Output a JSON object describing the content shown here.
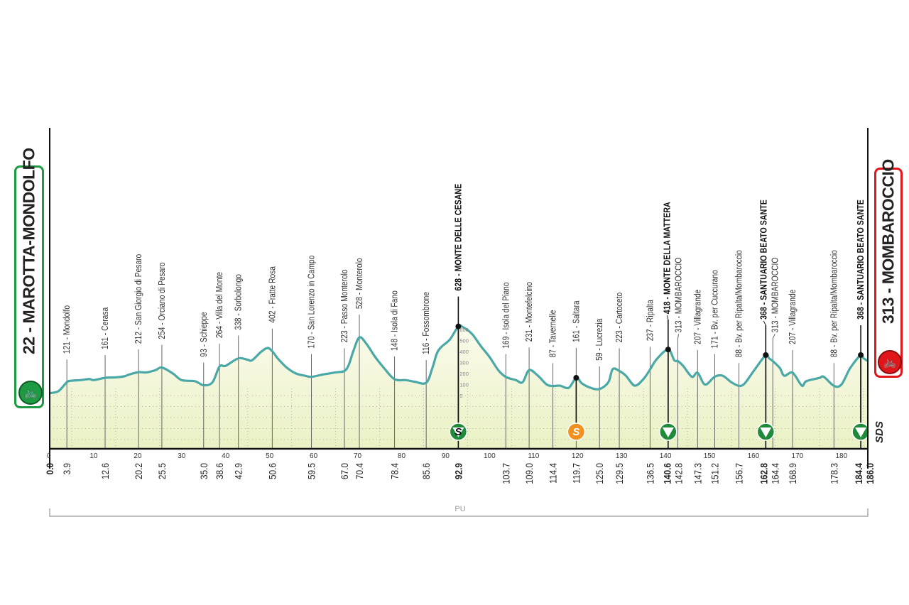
{
  "start": {
    "label": "22 - MAROTTA-MONDOLFO",
    "icon": "cyclist-icon",
    "color": "#1e9a45"
  },
  "finish": {
    "label": "313 - MOMBAROCCIO",
    "icon": "cyclist-climb-icon",
    "color": "#e0161b"
  },
  "pu_label": "PU",
  "sds_logo": "SDS",
  "colors": {
    "profile_line": "#4aa8a6",
    "fill_top": "#fbfbec",
    "fill_bottom": "#eaf1c4",
    "gpm_marker": "#1e8a3a",
    "sprint_marker": "#f0901e"
  },
  "chart_data": {
    "type": "area",
    "xlabel": "",
    "ylabel": "",
    "xlim": [
      0,
      186
    ],
    "x_ticks": [
      0,
      10,
      20,
      30,
      40,
      50,
      60,
      70,
      80,
      90,
      100,
      110,
      120,
      130,
      140,
      150,
      160,
      170,
      180
    ],
    "elevation_scale_ticks": [
      0,
      100,
      200,
      300,
      400,
      500,
      600
    ],
    "grid": true,
    "profile": {
      "km": [
        0,
        2,
        3.9,
        5,
        7,
        9,
        10,
        12.6,
        15,
        17,
        18,
        20.2,
        22,
        24,
        25.5,
        28,
        30,
        33,
        35,
        37,
        38.6,
        40,
        42.9,
        45,
        46,
        48,
        49.5,
        50.6,
        52,
        54,
        56,
        58,
        59.5,
        62,
        65,
        67,
        68,
        69,
        70.4,
        72,
        74,
        76,
        78.4,
        81,
        83,
        85.6,
        87,
        88,
        89,
        91,
        92.9,
        94,
        96,
        98,
        100,
        102,
        103.7,
        106,
        107.5,
        109,
        111,
        113,
        114.4,
        116,
        118,
        119.7,
        121,
        123,
        125,
        127,
        128,
        129.5,
        131,
        133,
        135,
        136.5,
        138,
        140.6,
        142,
        142.8,
        144,
        146,
        147.3,
        149,
        151.2,
        153,
        155,
        156.7,
        158,
        160,
        162.8,
        163.5,
        164.4,
        166,
        167,
        168.9,
        171,
        172,
        175,
        176,
        178.3,
        180,
        182,
        184.4,
        185,
        186
      ],
      "elevation": [
        22,
        40,
        121,
        135,
        140,
        150,
        140,
        161,
        165,
        175,
        190,
        212,
        210,
        230,
        254,
        200,
        140,
        130,
        93,
        120,
        264,
        270,
        338,
        325,
        320,
        395,
        432,
        402,
        330,
        250,
        200,
        180,
        170,
        190,
        210,
        223,
        280,
        400,
        528,
        470,
        350,
        250,
        148,
        140,
        125,
        116,
        250,
        380,
        440,
        510,
        628,
        620,
        560,
        450,
        350,
        230,
        169,
        140,
        120,
        231,
        180,
        100,
        87,
        90,
        70,
        161,
        110,
        70,
        59,
        120,
        240,
        223,
        180,
        90,
        150,
        237,
        330,
        418,
        320,
        313,
        270,
        170,
        207,
        100,
        171,
        180,
        120,
        88,
        110,
        220,
        368,
        340,
        313,
        250,
        180,
        207,
        90,
        130,
        160,
        170,
        88,
        100,
        250,
        368,
        340,
        313
      ]
    },
    "points": [
      {
        "km": "0.0",
        "elevation": 22,
        "name": "",
        "bold": true
      },
      {
        "km": "3.9",
        "elevation": 121,
        "name": "121 - Mondolfo"
      },
      {
        "km": "12.6",
        "elevation": 161,
        "name": "161 - Cerasa"
      },
      {
        "km": "20.2",
        "elevation": 212,
        "name": "212 - San Giorgio di Pesaro"
      },
      {
        "km": "25.5",
        "elevation": 254,
        "name": "254 - Orciano di Pesaro"
      },
      {
        "km": "35.0",
        "elevation": 93,
        "name": "93 - Schieppe"
      },
      {
        "km": "38.6",
        "elevation": 264,
        "name": "264 - Villa del Monte"
      },
      {
        "km": "42.9",
        "elevation": 338,
        "name": "338 - Sorbolongo"
      },
      {
        "km": "50.6",
        "elevation": 402,
        "name": "402 - Fratte Rosa"
      },
      {
        "km": "59.5",
        "elevation": 170,
        "name": "170 - San Lorenzo in Campo"
      },
      {
        "km": "67.0",
        "elevation": 223,
        "name": "223 - Passo Monterolo"
      },
      {
        "km": "70.4",
        "elevation": 528,
        "name": "528 - Monterolo"
      },
      {
        "km": "78.4",
        "elevation": 148,
        "name": "148 - Isola di Fano"
      },
      {
        "km": "85.6",
        "elevation": 116,
        "name": "116 - Fossombrone"
      },
      {
        "km": "92.9",
        "elevation": 628,
        "name": "628 - MONTE DELLE CESANE",
        "bold": true,
        "marker": "gpm-sprint"
      },
      {
        "km": "103.7",
        "elevation": 169,
        "name": "169 - Isola del Piano"
      },
      {
        "km": "109.0",
        "elevation": 231,
        "name": "231 - Montefelcino"
      },
      {
        "km": "114.4",
        "elevation": 87,
        "name": "87 - Tavernelle"
      },
      {
        "km": "119.7",
        "elevation": 161,
        "name": "161 - Saltara",
        "marker": "sprint"
      },
      {
        "km": "125.0",
        "elevation": 59,
        "name": "59 - Lucrezia"
      },
      {
        "km": "129.5",
        "elevation": 223,
        "name": "223 - Cartoceto"
      },
      {
        "km": "136.5",
        "elevation": 237,
        "name": "237 - Ripalta"
      },
      {
        "km": "140.6",
        "elevation": 418,
        "name": "418 - MONTE DELLA MATTERA",
        "bold": true,
        "marker": "gpm"
      },
      {
        "km": "142.8",
        "elevation": 313,
        "name": "313 - MOMBAROCCIO"
      },
      {
        "km": "147.3",
        "elevation": 207,
        "name": "207 - Villagrande"
      },
      {
        "km": "151.2",
        "elevation": 171,
        "name": "171 - Bv. per Cuccurano"
      },
      {
        "km": "156.7",
        "elevation": 88,
        "name": "88 - Bv. per Ripalta/Mombaroccio"
      },
      {
        "km": "162.8",
        "elevation": 368,
        "name": "368 - SANTUARIO BEATO SANTE",
        "bold": true,
        "marker": "gpm"
      },
      {
        "km": "164.4",
        "elevation": 313,
        "name": "313 - MOMBAROCCIO"
      },
      {
        "km": "168.9",
        "elevation": 207,
        "name": "207 - Villagrande"
      },
      {
        "km": "178.3",
        "elevation": 88,
        "name": "88 - Bv. per Ripalta/Mombaroccio"
      },
      {
        "km": "184.4",
        "elevation": 368,
        "name": "368 - SANTUARIO BEATO SANTE",
        "bold": true,
        "marker": "gpm"
      },
      {
        "km": "186.0",
        "elevation": 313,
        "name": "",
        "bold": true
      }
    ]
  }
}
